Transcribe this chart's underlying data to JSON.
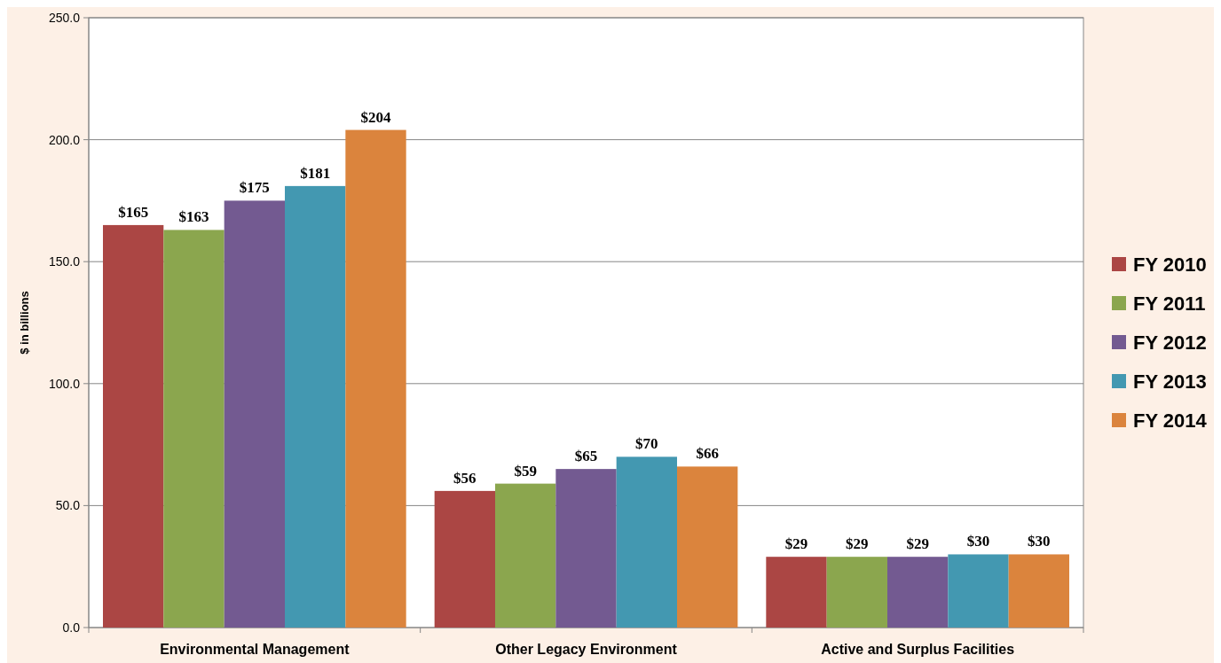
{
  "chart_data": {
    "type": "bar",
    "categories": [
      "Environmental Management",
      "Other Legacy Environment",
      "Active and Surplus Facilities"
    ],
    "ylabel": "$ in billions",
    "ylim": [
      0,
      250
    ],
    "yticks": [
      {
        "value": 0,
        "label": "0.0"
      },
      {
        "value": 50,
        "label": "50.0"
      },
      {
        "value": 100,
        "label": "100.0"
      },
      {
        "value": 150,
        "label": "150.0"
      },
      {
        "value": 200,
        "label": "200.0"
      },
      {
        "value": 250,
        "label": "250.0"
      }
    ],
    "grid": "y",
    "legend": "right",
    "series": [
      {
        "name": "FY 2010",
        "color": "#ab4644",
        "values": [
          165,
          56,
          29
        ],
        "value_labels": [
          "$165",
          "$56",
          "$29"
        ]
      },
      {
        "name": "FY 2011",
        "color": "#8ba64e",
        "values": [
          163,
          59,
          29
        ],
        "value_labels": [
          "$163",
          "$59",
          "$29"
        ]
      },
      {
        "name": "FY 2012",
        "color": "#735a91",
        "values": [
          175,
          65,
          29
        ],
        "value_labels": [
          "$175",
          "$65",
          "$29"
        ]
      },
      {
        "name": "FY 2013",
        "color": "#4398b1",
        "values": [
          181,
          70,
          30
        ],
        "value_labels": [
          "$181",
          "$70",
          "$30"
        ]
      },
      {
        "name": "FY 2014",
        "color": "#db843d",
        "values": [
          204,
          66,
          30
        ],
        "value_labels": [
          "$204",
          "$66",
          "$30"
        ]
      }
    ]
  }
}
